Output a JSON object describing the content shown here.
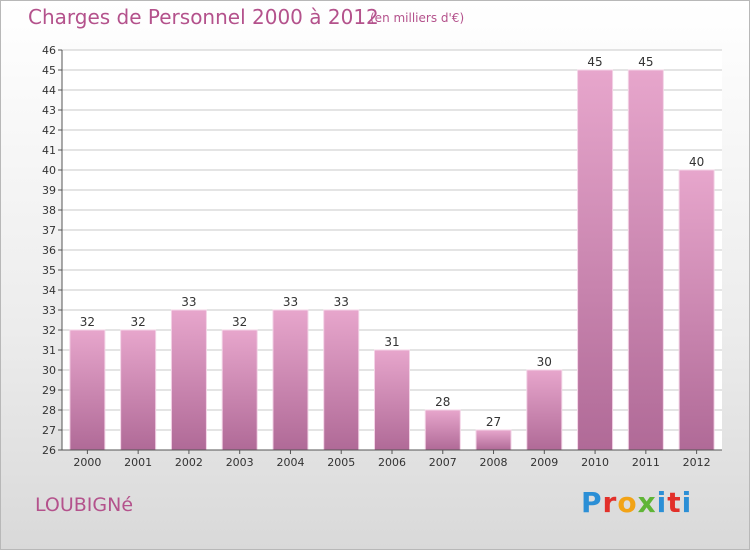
{
  "chart_data": {
    "type": "bar",
    "title": "Charges de Personnel 2000 à 2012",
    "subtitle": "(en milliers d'€)",
    "categories": [
      "2000",
      "2001",
      "2002",
      "2003",
      "2004",
      "2005",
      "2006",
      "2007",
      "2008",
      "2009",
      "2010",
      "2011",
      "2012"
    ],
    "values": [
      32,
      32,
      33,
      32,
      33,
      33,
      31,
      28,
      27,
      30,
      45,
      45,
      40
    ],
    "ylim": [
      26,
      46
    ],
    "yticks": [
      26,
      27,
      28,
      29,
      30,
      31,
      32,
      33,
      34,
      35,
      36,
      37,
      38,
      39,
      40,
      41,
      42,
      43,
      44,
      45,
      46
    ],
    "grid": true,
    "xlabel": "",
    "ylabel": ""
  },
  "place_name": "LOUBIGNé",
  "logo": {
    "text": "Proxiti"
  },
  "colors": {
    "title": "#b4528c",
    "bar_light": "#e7a6cc",
    "bar_dark": "#b06a97",
    "grid": "#c9c9c9"
  }
}
